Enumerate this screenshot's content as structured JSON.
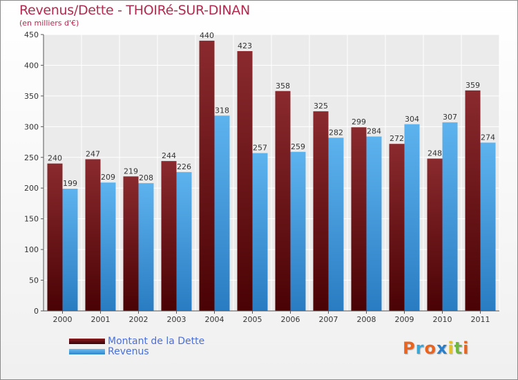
{
  "chart_data": {
    "type": "bar",
    "title": "Revenus/Dette - THOIRé-SUR-DINAN",
    "subtitle": "(en milliers d'€)",
    "categories": [
      "2000",
      "2001",
      "2002",
      "2003",
      "2004",
      "2005",
      "2006",
      "2007",
      "2008",
      "2009",
      "2010",
      "2011"
    ],
    "series": [
      {
        "name": "Montant de la Dette",
        "color": "#6b0f12",
        "values": [
          240,
          247,
          219,
          244,
          440,
          423,
          358,
          325,
          299,
          272,
          248,
          359
        ]
      },
      {
        "name": "Revenus",
        "color": "#4aa3e6",
        "values": [
          199,
          209,
          208,
          226,
          318,
          257,
          259,
          282,
          284,
          304,
          307,
          274
        ]
      }
    ],
    "ylim": [
      0,
      450
    ],
    "yticks": [
      0,
      50,
      100,
      150,
      200,
      250,
      300,
      350,
      400,
      450
    ],
    "grid": true,
    "legend_position": "bottom-left"
  },
  "logo": {
    "letters": [
      "P",
      "r",
      "o",
      "x",
      "i",
      "t",
      "i"
    ],
    "colors": [
      "#e8641f",
      "#39a8d8",
      "#e8641f",
      "#2a7fc9",
      "#e8c21c",
      "#6db93d",
      "#e8641f"
    ]
  }
}
